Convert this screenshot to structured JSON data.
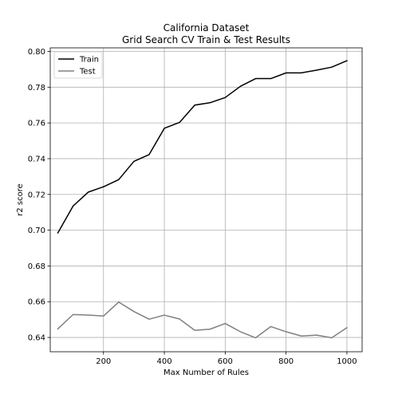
{
  "chart_data": {
    "type": "line",
    "title": [
      "California Dataset",
      "Grid Search CV Train & Test Results"
    ],
    "xlabel": "Max Number of Rules",
    "ylabel": "r2 score",
    "xlim": [
      25,
      1050
    ],
    "ylim": [
      0.632,
      0.802
    ],
    "xticks": [
      200,
      400,
      600,
      800,
      1000
    ],
    "yticks": [
      0.64,
      0.66,
      0.68,
      0.7,
      0.72,
      0.74,
      0.76,
      0.78,
      0.8
    ],
    "grid": true,
    "legend_position": "top-left",
    "x": [
      50,
      100,
      150,
      200,
      250,
      300,
      350,
      400,
      450,
      500,
      550,
      600,
      650,
      700,
      750,
      800,
      850,
      900,
      950,
      1000
    ],
    "series": [
      {
        "name": "Train",
        "color": "#000000",
        "values": [
          0.6985,
          0.7135,
          0.7213,
          0.7243,
          0.7283,
          0.7385,
          0.7423,
          0.757,
          0.7603,
          0.77,
          0.7713,
          0.7742,
          0.7805,
          0.7848,
          0.7848,
          0.788,
          0.788,
          0.7895,
          0.7912,
          0.7948
        ]
      },
      {
        "name": "Test",
        "color": "#808080",
        "values": [
          0.6448,
          0.6528,
          0.6525,
          0.652,
          0.6598,
          0.6545,
          0.6502,
          0.6525,
          0.6503,
          0.644,
          0.6446,
          0.6478,
          0.6432,
          0.6398,
          0.6461,
          0.6432,
          0.6408,
          0.6413,
          0.6398,
          0.6455
        ]
      }
    ]
  }
}
